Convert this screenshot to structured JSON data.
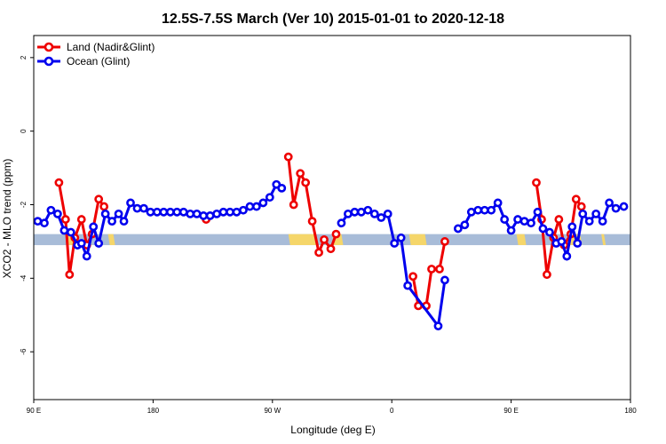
{
  "chart_data": {
    "type": "line",
    "title": "12.5S-7.5S March (Ver 10)   2015-01-01 to 2020-12-18",
    "xlabel": "Longitude (deg E)",
    "ylabel": "XCO2 - MLO trend (ppm)",
    "xlim": [
      90,
      540
    ],
    "ylim": [
      -7.3,
      2.6
    ],
    "x_ticks": [
      {
        "value": 90,
        "label": "90 E"
      },
      {
        "value": 180,
        "label": "180"
      },
      {
        "value": 270,
        "label": "90 W"
      },
      {
        "value": 360,
        "label": "0"
      },
      {
        "value": 450,
        "label": "90 E"
      },
      {
        "value": 540,
        "label": "180"
      }
    ],
    "y_ticks": [
      {
        "value": 2,
        "label": "2"
      },
      {
        "value": 0,
        "label": "0"
      },
      {
        "value": -2,
        "label": "-2"
      },
      {
        "value": -4,
        "label": "-4"
      },
      {
        "value": -6,
        "label": "-6"
      }
    ],
    "grid": false,
    "legend": {
      "position": "top-left"
    },
    "band": {
      "y_range": [
        -3.1,
        -2.8
      ],
      "ocean_color": "#a8bcd8",
      "land_color": "#f5d66a",
      "land_segments": [
        [
          114,
          120
        ],
        [
          146,
          150
        ],
        [
          282,
          303
        ],
        [
          315,
          322
        ],
        [
          373,
          385
        ],
        [
          454,
          460
        ],
        [
          493,
          502
        ],
        [
          518,
          520
        ]
      ]
    },
    "series": [
      {
        "name": "Land (Nadir&Glint)",
        "color": "#ee0000",
        "segments": [
          [
            [
              109,
              -1.4
            ],
            [
              114,
              -2.4
            ],
            [
              117,
              -3.9
            ],
            [
              121,
              -2.9
            ],
            [
              126,
              -2.4
            ],
            [
              130,
              -3.1
            ],
            [
              134,
              -2.8
            ],
            [
              139,
              -1.85
            ],
            [
              143,
              -2.05
            ]
          ],
          [
            [
              220,
              -2.4
            ]
          ],
          [
            [
              282,
              -0.7
            ],
            [
              286,
              -2.0
            ],
            [
              291,
              -1.15
            ],
            [
              295,
              -1.4
            ],
            [
              300,
              -2.45
            ],
            [
              305,
              -3.3
            ],
            [
              309,
              -2.95
            ],
            [
              314,
              -3.2
            ],
            [
              318,
              -2.8
            ]
          ],
          [
            [
              376,
              -3.95
            ],
            [
              380,
              -4.75
            ],
            [
              386,
              -4.75
            ],
            [
              390,
              -3.75
            ],
            [
              396,
              -3.75
            ],
            [
              400,
              -3.0
            ]
          ],
          [
            [
              469,
              -1.4
            ],
            [
              473,
              -2.4
            ],
            [
              477,
              -3.9
            ],
            [
              482,
              -2.9
            ],
            [
              486,
              -2.4
            ],
            [
              490,
              -3.1
            ],
            [
              495,
              -2.8
            ],
            [
              499,
              -1.85
            ],
            [
              503,
              -2.05
            ]
          ]
        ]
      },
      {
        "name": "Ocean (Glint)",
        "color": "#0000ee",
        "segments": [
          [
            [
              93,
              -2.45
            ],
            [
              98,
              -2.5
            ],
            [
              103,
              -2.15
            ],
            [
              108,
              -2.25
            ],
            [
              113,
              -2.7
            ],
            [
              118,
              -2.75
            ],
            [
              123,
              -3.1
            ],
            [
              126,
              -3.05
            ],
            [
              130,
              -3.4
            ],
            [
              135,
              -2.6
            ],
            [
              139,
              -3.05
            ],
            [
              144,
              -2.25
            ],
            [
              149,
              -2.45
            ],
            [
              154,
              -2.25
            ],
            [
              158,
              -2.45
            ],
            [
              163,
              -1.95
            ],
            [
              168,
              -2.1
            ],
            [
              173,
              -2.1
            ],
            [
              178,
              -2.2
            ],
            [
              183,
              -2.2
            ],
            [
              188,
              -2.2
            ],
            [
              193,
              -2.2
            ],
            [
              198,
              -2.2
            ],
            [
              203,
              -2.2
            ],
            [
              208,
              -2.25
            ],
            [
              213,
              -2.25
            ],
            [
              218,
              -2.3
            ],
            [
              223,
              -2.3
            ],
            [
              228,
              -2.25
            ],
            [
              233,
              -2.2
            ],
            [
              238,
              -2.2
            ],
            [
              243,
              -2.2
            ],
            [
              248,
              -2.15
            ],
            [
              253,
              -2.05
            ],
            [
              258,
              -2.05
            ],
            [
              263,
              -1.95
            ],
            [
              268,
              -1.8
            ],
            [
              273,
              -1.45
            ],
            [
              277,
              -1.55
            ]
          ],
          [
            [
              322,
              -2.5
            ],
            [
              327,
              -2.25
            ],
            [
              332,
              -2.2
            ],
            [
              337,
              -2.2
            ],
            [
              342,
              -2.15
            ],
            [
              347,
              -2.25
            ],
            [
              352,
              -2.35
            ],
            [
              357,
              -2.25
            ],
            [
              362,
              -3.05
            ],
            [
              367,
              -2.9
            ],
            [
              372,
              -4.2
            ],
            [
              395,
              -5.3
            ],
            [
              400,
              -4.05
            ]
          ],
          [
            [
              410,
              -2.65
            ],
            [
              415,
              -2.55
            ],
            [
              420,
              -2.2
            ],
            [
              425,
              -2.15
            ],
            [
              430,
              -2.15
            ],
            [
              435,
              -2.15
            ],
            [
              440,
              -1.95
            ],
            [
              445,
              -2.4
            ],
            [
              450,
              -2.7
            ],
            [
              455,
              -2.4
            ],
            [
              460,
              -2.45
            ],
            [
              465,
              -2.5
            ],
            [
              470,
              -2.2
            ],
            [
              474,
              -2.65
            ],
            [
              479,
              -2.75
            ],
            [
              484,
              -3.05
            ],
            [
              488,
              -3.0
            ],
            [
              492,
              -3.4
            ],
            [
              496,
              -2.6
            ],
            [
              500,
              -3.05
            ],
            [
              504,
              -2.25
            ],
            [
              509,
              -2.45
            ],
            [
              514,
              -2.25
            ],
            [
              519,
              -2.45
            ],
            [
              524,
              -1.95
            ],
            [
              529,
              -2.1
            ],
            [
              535,
              -2.05
            ]
          ]
        ]
      }
    ]
  }
}
